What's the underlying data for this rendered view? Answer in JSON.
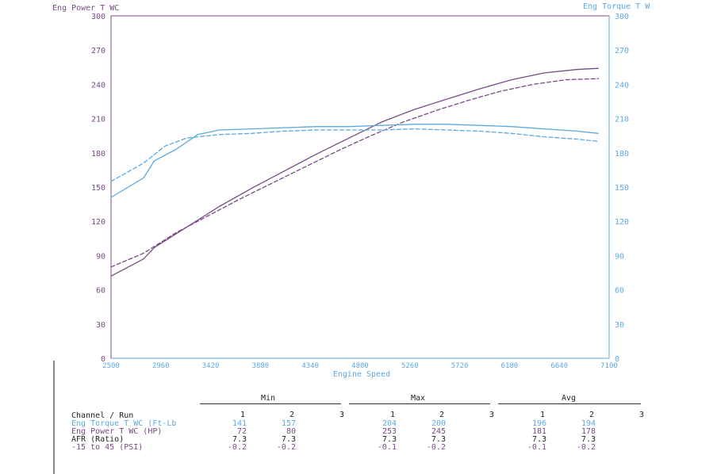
{
  "chart_data": {
    "type": "line",
    "left_axis_title": "Eng Power T WC",
    "right_axis_title": "Eng Torque T W",
    "xlabel": "Engine Speed",
    "xlim": [
      2500,
      7100
    ],
    "ylim_left": [
      0,
      300
    ],
    "ylim_right": [
      0,
      300
    ],
    "x_ticks": [
      "2500",
      "2960",
      "3420",
      "3880",
      "4340",
      "4800",
      "5260",
      "5720",
      "6180",
      "6640",
      "7100"
    ],
    "left_ticks": [
      "0",
      "30",
      "60",
      "90",
      "120",
      "150",
      "180",
      "210",
      "240",
      "270",
      "300"
    ],
    "right_ticks": [
      "0",
      "30",
      "60",
      "90",
      "120",
      "150",
      "180",
      "210",
      "240",
      "270",
      "300"
    ],
    "grid": false,
    "colors": {
      "power": "#7a4a86",
      "torque": "#5aa9e0"
    },
    "series": [
      {
        "axis": "left",
        "style": "solid",
        "color": "#7a4a86",
        "x": [
          2500,
          2800,
          2900,
          3200,
          3500,
          3800,
          4100,
          4400,
          4700,
          5000,
          5300,
          5600,
          5900,
          6200,
          6500,
          6800,
          7000
        ],
        "y": [
          72,
          87,
          97,
          115,
          133,
          149,
          164,
          179,
          193,
          207,
          218,
          227,
          236,
          244,
          250,
          253,
          254
        ]
      },
      {
        "axis": "left",
        "style": "dashed",
        "color": "#7a4a86",
        "x": [
          2500,
          2800,
          3100,
          3400,
          3700,
          4000,
          4300,
          4600,
          4900,
          5200,
          5500,
          5800,
          6100,
          6400,
          6700,
          7000
        ],
        "y": [
          80,
          92,
          110,
          125,
          140,
          154,
          168,
          182,
          195,
          207,
          217,
          226,
          234,
          240,
          244,
          245
        ]
      },
      {
        "axis": "right",
        "style": "solid",
        "color": "#5aa9e0",
        "x": [
          2500,
          2800,
          2900,
          3100,
          3300,
          3500,
          3800,
          4100,
          4400,
          4700,
          5000,
          5300,
          5600,
          5900,
          6200,
          6500,
          6800,
          7000
        ],
        "y": [
          141,
          158,
          173,
          183,
          196,
          200,
          201,
          202,
          203,
          203,
          204,
          205,
          205,
          204,
          203,
          201,
          199,
          197
        ]
      },
      {
        "axis": "right",
        "style": "dashed",
        "color": "#5aa9e0",
        "x": [
          2500,
          2800,
          3000,
          3200,
          3500,
          3800,
          4100,
          4400,
          4700,
          5000,
          5300,
          5600,
          5900,
          6200,
          6500,
          6800,
          7000
        ],
        "y": [
          155,
          171,
          186,
          193,
          196,
          197,
          199,
          200,
          200,
          200,
          201,
          200,
          199,
          197,
          194,
          192,
          190
        ]
      }
    ]
  },
  "table": {
    "group_headers": [
      "Min",
      "Max",
      "Avg"
    ],
    "header_label": "Channel / Run",
    "run_numbers": [
      "1",
      "2",
      "3"
    ],
    "rows": [
      {
        "label": "Eng Torque T WC (Ft-Lb",
        "color": "#5aa9e0",
        "values": [
          "141",
          "157",
          "",
          "204",
          "200",
          "",
          "196",
          "194",
          ""
        ]
      },
      {
        "label": "Eng Power T WC (HP)",
        "color": "#7a4a86",
        "values": [
          "72",
          "80",
          "",
          "253",
          "245",
          "",
          "181",
          "178",
          ""
        ]
      },
      {
        "label": "AFR (Ratio)",
        "color": "#222222",
        "values": [
          "7.3",
          "7.3",
          "",
          "7.3",
          "7.3",
          "",
          "7.3",
          "7.3",
          ""
        ]
      },
      {
        "label": "-15 to 45 (PSI)",
        "color": "#7a4a86",
        "values": [
          "-0.2",
          "-0.2",
          "",
          "-0.1",
          "-0.2",
          "",
          "-0.1",
          "-0.2",
          ""
        ]
      }
    ]
  }
}
